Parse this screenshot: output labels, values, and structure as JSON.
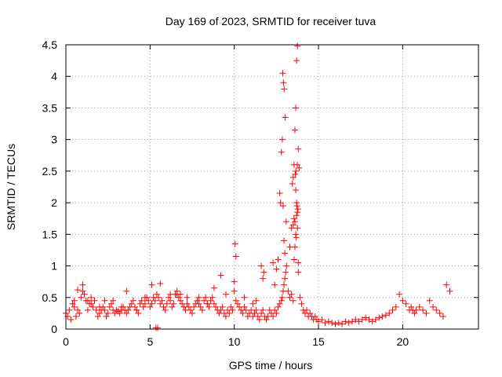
{
  "chart_data": {
    "type": "scatter",
    "title": "Day 169 of 2023, SRMTID for receiver tuva",
    "xlabel": "GPS time / hours",
    "ylabel": "SRMTID / TECUs",
    "xlim": [
      0,
      24.5
    ],
    "ylim": [
      0,
      4.5
    ],
    "xticks": [
      0,
      5,
      10,
      15,
      20
    ],
    "yticks": [
      0,
      0.5,
      1,
      1.5,
      2,
      2.5,
      3,
      3.5,
      4,
      4.5
    ],
    "xtick_labels": [
      "0",
      "5",
      "10",
      "15",
      "20"
    ],
    "ytick_labels": [
      "0",
      "0.5",
      "1",
      "1.5",
      "2",
      "2.5",
      "3",
      "3.5",
      "4",
      "4.5"
    ],
    "grid": true,
    "marker": "+",
    "color": "#ff0000",
    "series": [
      {
        "name": "SRMTID",
        "x": [
          0.0,
          0.1,
          0.2,
          0.3,
          0.4,
          0.5,
          0.6,
          0.7,
          0.8,
          0.9,
          1.0,
          1.1,
          1.2,
          1.3,
          1.4,
          1.5,
          1.6,
          1.7,
          1.8,
          1.9,
          2.0,
          2.1,
          2.2,
          2.3,
          2.4,
          2.5,
          2.6,
          2.7,
          2.8,
          2.9,
          3.0,
          3.1,
          3.2,
          3.3,
          3.4,
          3.5,
          3.6,
          3.7,
          3.8,
          3.9,
          4.0,
          4.1,
          4.2,
          4.3,
          4.4,
          4.5,
          4.6,
          4.7,
          4.8,
          4.9,
          5.0,
          5.1,
          5.2,
          5.3,
          5.4,
          5.5,
          5.6,
          5.7,
          5.8,
          5.9,
          6.0,
          6.1,
          6.2,
          6.3,
          6.4,
          6.5,
          6.6,
          6.7,
          6.8,
          6.9,
          7.0,
          7.1,
          7.2,
          7.3,
          7.4,
          7.5,
          7.6,
          7.7,
          7.8,
          7.9,
          8.0,
          8.1,
          8.2,
          8.3,
          8.4,
          8.5,
          8.6,
          8.7,
          8.8,
          8.9,
          9.0,
          9.1,
          9.2,
          9.3,
          9.4,
          9.5,
          9.6,
          9.7,
          9.8,
          9.9,
          10.0,
          10.1,
          10.2,
          10.3,
          10.4,
          10.5,
          10.6,
          10.7,
          10.8,
          10.9,
          11.0,
          11.1,
          11.2,
          11.3,
          11.4,
          11.5,
          11.6,
          11.7,
          11.8,
          11.9,
          12.0,
          12.1,
          12.2,
          12.3,
          12.4,
          12.5,
          12.6,
          12.7,
          12.8,
          12.85,
          12.9,
          12.95,
          13.0,
          13.05,
          13.1,
          13.2,
          13.3,
          13.4,
          13.5,
          13.55,
          13.6,
          13.65,
          13.7,
          13.75,
          13.8,
          13.9,
          14.0,
          14.1,
          14.2,
          14.3,
          14.4,
          14.5,
          14.6,
          14.7,
          14.8,
          14.9,
          15.0,
          15.2,
          15.4,
          15.6,
          15.8,
          16.0,
          16.2,
          16.4,
          16.6,
          16.8,
          17.0,
          17.2,
          17.4,
          17.6,
          17.8,
          18.0,
          18.2,
          18.4,
          18.6,
          18.8,
          19.0,
          19.2,
          19.4,
          19.6,
          19.8,
          20.0,
          20.2,
          20.4,
          20.5,
          20.6,
          20.7,
          20.8,
          21.0,
          21.2,
          21.4,
          21.6,
          21.8,
          22.0,
          22.2,
          22.4,
          22.6,
          22.8,
          1.3,
          1.5,
          2.0,
          2.3,
          3.6,
          4.2,
          5.1,
          5.6,
          6.6,
          6.8,
          7.2,
          8.4,
          8.8,
          9.2,
          10.0,
          10.05,
          10.1,
          11.6,
          11.7,
          11.75,
          12.3,
          12.4,
          12.5,
          12.6,
          12.7,
          12.75,
          12.8,
          12.85,
          12.9,
          12.95,
          13.0,
          13.3,
          13.4,
          13.45,
          13.5,
          13.55,
          13.6,
          13.65,
          13.7,
          13.75,
          13.8,
          13.85,
          13.65,
          13.7,
          13.75,
          13.6,
          13.55,
          13.5,
          13.72,
          13.78,
          13.68,
          12.88,
          12.92,
          12.96,
          13.02,
          13.08,
          13.62,
          13.66,
          13.74,
          13.8,
          5.35,
          5.45,
          0.5,
          0.7,
          1.0,
          2.8,
          3.3,
          4.7,
          6.2,
          7.9,
          9.5,
          10.6,
          11.1,
          11.3
        ],
        "y": [
          0.25,
          0.2,
          0.3,
          0.15,
          0.4,
          0.35,
          0.2,
          0.3,
          0.25,
          0.5,
          0.6,
          0.55,
          0.45,
          0.3,
          0.4,
          0.5,
          0.35,
          0.45,
          0.3,
          0.2,
          0.25,
          0.3,
          0.35,
          0.3,
          0.2,
          0.25,
          0.35,
          0.4,
          0.3,
          0.25,
          0.3,
          0.28,
          0.25,
          0.3,
          0.35,
          0.3,
          0.25,
          0.3,
          0.35,
          0.4,
          0.45,
          0.35,
          0.3,
          0.25,
          0.4,
          0.45,
          0.35,
          0.4,
          0.5,
          0.45,
          0.35,
          0.4,
          0.5,
          0.45,
          0.55,
          0.5,
          0.4,
          0.45,
          0.35,
          0.3,
          0.4,
          0.5,
          0.45,
          0.35,
          0.4,
          0.55,
          0.6,
          0.5,
          0.45,
          0.4,
          0.35,
          0.3,
          0.4,
          0.35,
          0.3,
          0.25,
          0.35,
          0.4,
          0.45,
          0.4,
          0.35,
          0.3,
          0.45,
          0.5,
          0.4,
          0.35,
          0.45,
          0.5,
          0.4,
          0.35,
          0.3,
          0.25,
          0.3,
          0.35,
          0.25,
          0.2,
          0.3,
          0.25,
          0.35,
          0.3,
          0.6,
          0.45,
          0.4,
          0.35,
          0.3,
          0.25,
          0.35,
          0.3,
          0.2,
          0.25,
          0.3,
          0.2,
          0.25,
          0.3,
          0.2,
          0.15,
          0.25,
          0.3,
          0.2,
          0.15,
          0.2,
          0.3,
          0.25,
          0.2,
          0.3,
          0.25,
          0.35,
          0.4,
          0.45,
          0.5,
          0.6,
          0.7,
          0.8,
          0.9,
          1.0,
          0.6,
          0.5,
          0.55,
          0.45,
          1.1,
          1.3,
          1.5,
          1.8,
          1.6,
          0.9,
          0.5,
          0.4,
          0.3,
          0.25,
          0.3,
          0.2,
          0.25,
          0.2,
          0.15,
          0.2,
          0.15,
          0.12,
          0.15,
          0.1,
          0.12,
          0.1,
          0.08,
          0.1,
          0.08,
          0.12,
          0.1,
          0.12,
          0.15,
          0.12,
          0.15,
          0.18,
          0.15,
          0.12,
          0.15,
          0.18,
          0.2,
          0.22,
          0.25,
          0.3,
          0.35,
          0.55,
          0.45,
          0.4,
          0.3,
          0.35,
          0.3,
          0.25,
          0.3,
          0.35,
          0.3,
          0.25,
          0.45,
          0.35,
          0.3,
          0.25,
          0.2,
          0.7,
          0.6,
          0.45,
          0.4,
          0.35,
          0.45,
          0.6,
          0.3,
          0.7,
          0.72,
          0.55,
          0.55,
          0.5,
          0.4,
          0.65,
          0.85,
          0.75,
          1.35,
          1.15,
          1.0,
          0.8,
          0.9,
          1.05,
          0.7,
          0.95,
          1.1,
          2.15,
          2.0,
          2.8,
          3.0,
          1.95,
          1.4,
          1.2,
          1.3,
          1.6,
          2.3,
          2.4,
          2.6,
          3.15,
          3.5,
          4.25,
          4.48,
          2.85,
          2.55,
          2.2,
          2.0,
          1.85,
          1.7,
          1.75,
          1.65,
          1.95,
          1.9,
          1.45,
          4.05,
          3.9,
          3.8,
          3.35,
          1.7,
          2.45,
          2.5,
          2.6,
          1.05,
          0.02,
          0.02,
          0.45,
          0.62,
          0.7,
          0.45,
          0.35,
          0.5,
          0.55,
          0.5,
          0.55,
          0.5,
          0.4,
          0.45
        ]
      }
    ]
  }
}
